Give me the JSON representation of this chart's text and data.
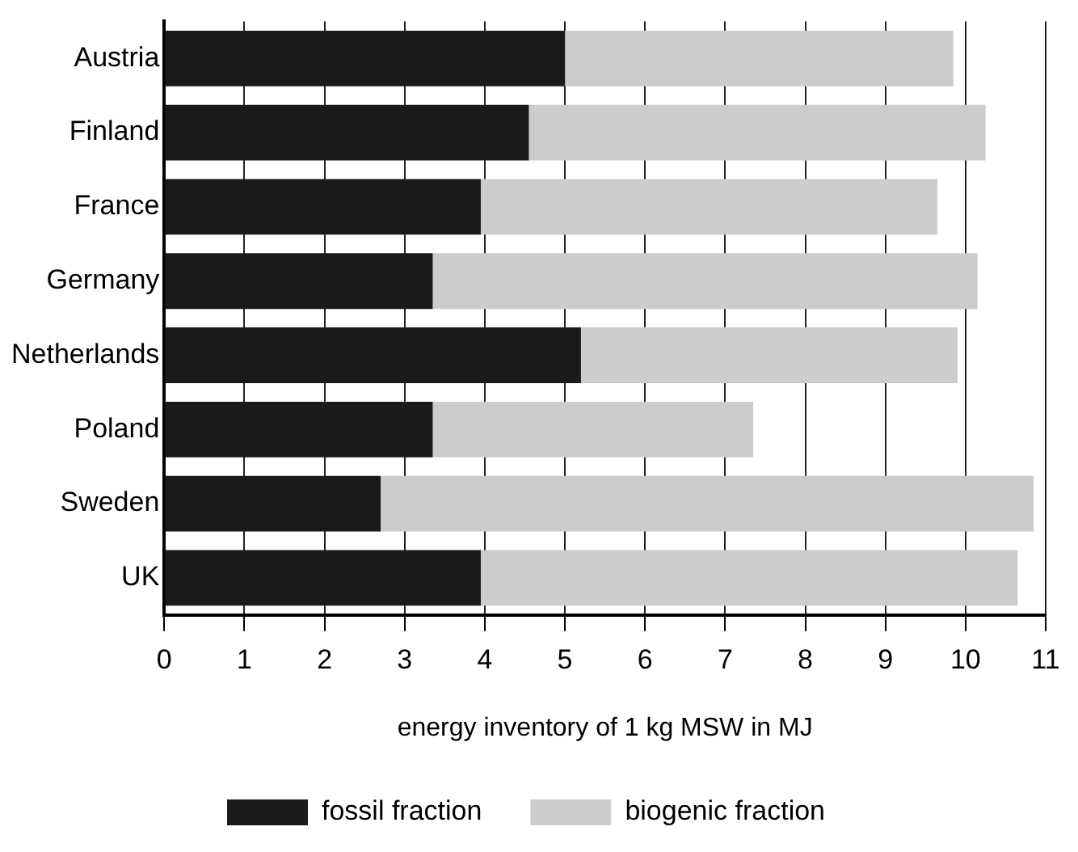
{
  "chart_data": {
    "type": "bar",
    "orientation": "horizontal",
    "stacked": true,
    "categories": [
      "Austria",
      "Finland",
      "France",
      "Germany",
      "Netherlands",
      "Poland",
      "Sweden",
      "UK"
    ],
    "series": [
      {
        "name": "fossil fraction",
        "color": "#1a1a1a",
        "values": [
          5.0,
          4.55,
          3.95,
          3.35,
          5.2,
          3.35,
          2.7,
          3.95
        ]
      },
      {
        "name": "biogenic fraction",
        "color": "#cccccc",
        "values": [
          4.85,
          5.7,
          5.7,
          6.8,
          4.7,
          4.0,
          8.15,
          6.7
        ]
      }
    ],
    "xlabel": "energy inventory of 1 kg MSW in MJ",
    "xlim": [
      0,
      11
    ],
    "xticks": [
      0,
      1,
      2,
      3,
      4,
      5,
      6,
      7,
      8,
      9,
      10,
      11
    ],
    "grid": "x",
    "legend": "bottom"
  }
}
